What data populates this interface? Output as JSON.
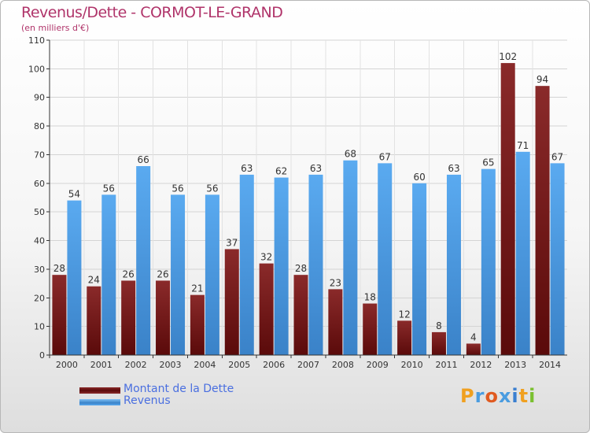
{
  "title": "Revenus/Dette - CORMOT-LE-GRAND",
  "subtitle": "(en milliers d'€)",
  "colors": {
    "dette_top": "#8a2a2a",
    "dette_bottom": "#5a0a0a",
    "revenus_top": "#5aaaf0",
    "revenus_bottom": "#3a82c8",
    "title": "#b0346a",
    "legend_text": "#4a6fe0"
  },
  "chart_data": {
    "type": "bar",
    "categories": [
      "2000",
      "2001",
      "2002",
      "2003",
      "2004",
      "2005",
      "2006",
      "2007",
      "2008",
      "2009",
      "2010",
      "2011",
      "2012",
      "2013",
      "2014"
    ],
    "series": [
      {
        "name": "Montant de la Dette",
        "values": [
          28,
          24,
          26,
          26,
          21,
          37,
          32,
          28,
          23,
          18,
          12,
          8,
          4,
          102,
          94
        ]
      },
      {
        "name": "Revenus",
        "values": [
          54,
          56,
          66,
          56,
          56,
          63,
          62,
          63,
          68,
          67,
          60,
          63,
          65,
          71,
          67
        ]
      }
    ],
    "yticks": [
      0,
      10,
      20,
      30,
      40,
      50,
      60,
      70,
      80,
      90,
      100,
      110
    ],
    "ylim": [
      0,
      110
    ],
    "grid": true,
    "legend_position": "bottom-left"
  },
  "legend": {
    "dette_label": "Montant de la Dette",
    "revenus_label": "Revenus"
  },
  "logo": {
    "text": "Proxiti"
  }
}
